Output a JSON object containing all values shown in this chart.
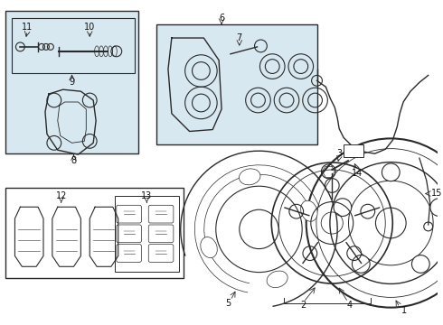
{
  "bg_color": "#f5f5f5",
  "line_color": "#2a2a2a",
  "box_bg": "#d8e8f0",
  "white": "#ffffff"
}
